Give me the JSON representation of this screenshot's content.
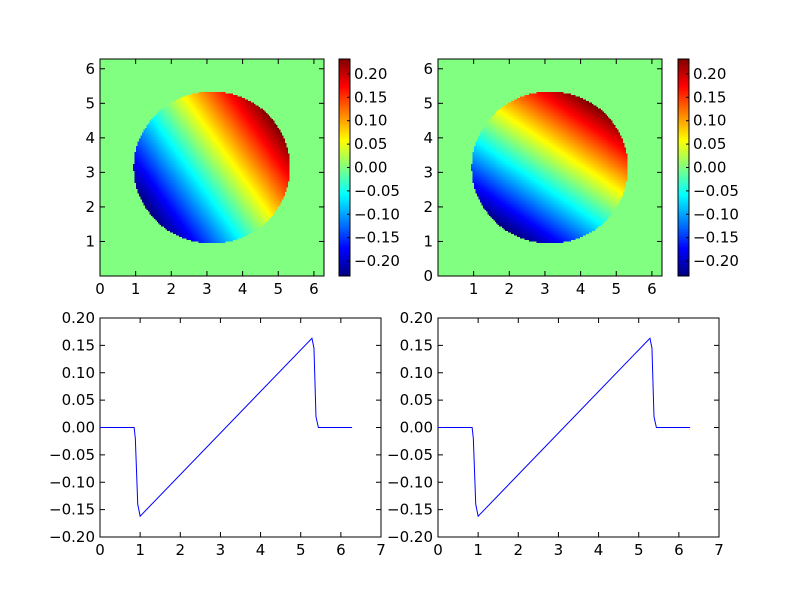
{
  "chart_data": [
    {
      "type": "heatmap",
      "position": "top-left",
      "xlim": [
        0,
        6.283
      ],
      "ylim": [
        0,
        6.283
      ],
      "xticks": [
        "0",
        "1",
        "2",
        "3",
        "4",
        "5",
        "6"
      ],
      "yticks": [
        "1",
        "2",
        "3",
        "4",
        "5",
        "6"
      ],
      "field": {
        "shape": "disk",
        "center": [
          3.14,
          3.14
        ],
        "radius": 2.2,
        "gradient_direction": [
          0.82,
          0.57
        ],
        "gradient_slope": 0.062,
        "outside_value": 0.0
      },
      "colormap": "jet",
      "colorbar": {
        "vmin": -0.232,
        "vmax": 0.232,
        "ticks": [
          "0.20",
          "0.15",
          "0.10",
          "0.05",
          "0.00",
          "−0.05",
          "−0.10",
          "−0.15",
          "−0.20"
        ],
        "tick_values": [
          0.2,
          0.15,
          0.1,
          0.05,
          0.0,
          -0.05,
          -0.1,
          -0.15,
          -0.2
        ]
      }
    },
    {
      "type": "heatmap",
      "position": "top-right",
      "xlim": [
        0,
        6.283
      ],
      "ylim": [
        0,
        6.283
      ],
      "xticks": [
        "1",
        "2",
        "3",
        "4",
        "5",
        "6"
      ],
      "yticks": [
        "0",
        "1",
        "2",
        "3",
        "4",
        "5",
        "6"
      ],
      "field": {
        "shape": "disk",
        "center": [
          3.14,
          3.14
        ],
        "radius": 2.2,
        "gradient_direction": [
          0.57,
          0.82
        ],
        "gradient_slope": 0.062,
        "outside_value": 0.0
      },
      "colormap": "jet",
      "colorbar": {
        "vmin": -0.232,
        "vmax": 0.232,
        "ticks": [
          "0.20",
          "0.15",
          "0.10",
          "0.05",
          "0.00",
          "−0.05",
          "−0.10",
          "−0.15",
          "−0.20"
        ],
        "tick_values": [
          0.2,
          0.15,
          0.1,
          0.05,
          0.0,
          -0.05,
          -0.1,
          -0.15,
          -0.2
        ]
      }
    },
    {
      "type": "line",
      "position": "bottom-left",
      "xlim": [
        0,
        7
      ],
      "ylim": [
        -0.2,
        0.2
      ],
      "xticks": [
        "0",
        "1",
        "2",
        "3",
        "4",
        "5",
        "6",
        "7"
      ],
      "yticks": [
        "0.20",
        "0.15",
        "0.10",
        "0.05",
        "0.00",
        "−0.05",
        "−0.10",
        "−0.15",
        "−0.20"
      ],
      "ytick_values": [
        0.2,
        0.15,
        0.1,
        0.05,
        0.0,
        -0.05,
        -0.1,
        -0.15,
        -0.2
      ],
      "series": [
        {
          "color": "#0000ff",
          "x": [
            0,
            0.85,
            0.88,
            0.94,
            1.0,
            5.28,
            5.33,
            5.38,
            5.44,
            6.28
          ],
          "y": [
            0,
            0,
            -0.02,
            -0.14,
            -0.162,
            0.163,
            0.145,
            0.02,
            0,
            0
          ]
        }
      ]
    },
    {
      "type": "line",
      "position": "bottom-right",
      "xlim": [
        0,
        7
      ],
      "ylim": [
        -0.2,
        0.2
      ],
      "xticks": [
        "0",
        "1",
        "2",
        "3",
        "4",
        "5",
        "6",
        "7"
      ],
      "yticks": [
        "0.20",
        "0.15",
        "0.10",
        "0.05",
        "0.00",
        "−0.05",
        "−0.10",
        "−0.15",
        "−0.20"
      ],
      "ytick_values": [
        0.2,
        0.15,
        0.1,
        0.05,
        0.0,
        -0.05,
        -0.1,
        -0.15,
        -0.2
      ],
      "series": [
        {
          "color": "#0000ff",
          "x": [
            0,
            0.85,
            0.88,
            0.94,
            1.0,
            5.28,
            5.33,
            5.38,
            5.44,
            6.28
          ],
          "y": [
            0,
            0,
            -0.02,
            -0.14,
            -0.162,
            0.163,
            0.145,
            0.02,
            0,
            0
          ]
        }
      ]
    }
  ]
}
